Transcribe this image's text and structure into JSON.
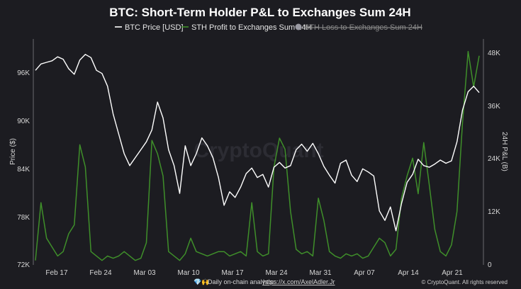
{
  "chart_data": {
    "type": "line",
    "title": "BTC: Short-Term Holder P&L to Exchanges Sum 24H",
    "ylabel_left": "Price ($)",
    "ylabel_right": "24H P&L (B)",
    "ylim_left": [
      72000,
      100000
    ],
    "ylim_right": [
      0,
      50000
    ],
    "yticks_left": [
      "72K",
      "78K",
      "84K",
      "90K",
      "96K"
    ],
    "yticks_right": [
      "0",
      "12K",
      "24K",
      "36K",
      "48K"
    ],
    "xticks": [
      "Feb 17",
      "Feb 24",
      "Mar 03",
      "Mar 10",
      "Mar 17",
      "Mar 24",
      "Mar 31",
      "Apr 07",
      "Apr 14",
      "Apr 21"
    ],
    "series": [
      {
        "name": "BTC Price [USD]",
        "color": "#ffffff",
        "axis": "left",
        "visible": true,
        "values": [
          [
            0,
            96500
          ],
          [
            1,
            97300
          ],
          [
            2,
            97500
          ],
          [
            3,
            97700
          ],
          [
            4,
            98200
          ],
          [
            5,
            97900
          ],
          [
            6,
            96700
          ],
          [
            7,
            96000
          ],
          [
            8,
            97800
          ],
          [
            9,
            98500
          ],
          [
            10,
            98100
          ],
          [
            11,
            96500
          ],
          [
            12,
            96100
          ],
          [
            13,
            94500
          ],
          [
            14,
            91000
          ],
          [
            15,
            88500
          ],
          [
            16,
            86000
          ],
          [
            17,
            84500
          ],
          [
            18,
            85500
          ],
          [
            19,
            86500
          ],
          [
            20,
            87500
          ],
          [
            21,
            89000
          ],
          [
            22,
            92500
          ],
          [
            23,
            90500
          ],
          [
            24,
            86500
          ],
          [
            25,
            84500
          ],
          [
            26,
            81000
          ],
          [
            27,
            87000
          ],
          [
            28,
            84500
          ],
          [
            29,
            86000
          ],
          [
            30,
            88000
          ],
          [
            31,
            87000
          ],
          [
            32,
            85500
          ],
          [
            33,
            83000
          ],
          [
            34,
            79500
          ],
          [
            35,
            81200
          ],
          [
            36,
            80500
          ],
          [
            37,
            81800
          ],
          [
            38,
            83500
          ],
          [
            39,
            84200
          ],
          [
            40,
            83000
          ],
          [
            41,
            83400
          ],
          [
            42,
            81800
          ],
          [
            43,
            84300
          ],
          [
            44,
            84900
          ],
          [
            45,
            84200
          ],
          [
            46,
            84500
          ],
          [
            47,
            86500
          ],
          [
            48,
            87200
          ],
          [
            49,
            86300
          ],
          [
            50,
            87300
          ],
          [
            51,
            86000
          ],
          [
            52,
            84400
          ],
          [
            53,
            83300
          ],
          [
            54,
            82300
          ],
          [
            55,
            84800
          ],
          [
            56,
            85200
          ],
          [
            57,
            83300
          ],
          [
            58,
            82500
          ],
          [
            59,
            84100
          ],
          [
            60,
            83700
          ],
          [
            61,
            83200
          ],
          [
            62,
            78800
          ],
          [
            63,
            77600
          ],
          [
            64,
            79300
          ],
          [
            65,
            76300
          ],
          [
            66,
            79700
          ],
          [
            67,
            82400
          ],
          [
            68,
            83400
          ],
          [
            69,
            85300
          ],
          [
            70,
            84500
          ],
          [
            71,
            84300
          ],
          [
            72,
            84700
          ],
          [
            73,
            85200
          ],
          [
            74,
            84800
          ],
          [
            75,
            85100
          ],
          [
            76,
            87500
          ],
          [
            77,
            91500
          ],
          [
            78,
            93800
          ],
          [
            79,
            94500
          ],
          [
            80,
            93700
          ]
        ]
      },
      {
        "name": "STH Profit to Exchanges Sum 24H",
        "color": "#3f8f2a",
        "axis": "right",
        "visible": true,
        "values": [
          [
            0,
            1000
          ],
          [
            1,
            14000
          ],
          [
            2,
            6000
          ],
          [
            3,
            4000
          ],
          [
            4,
            2000
          ],
          [
            5,
            3000
          ],
          [
            6,
            7000
          ],
          [
            7,
            9000
          ],
          [
            8,
            27000
          ],
          [
            9,
            22000
          ],
          [
            10,
            3000
          ],
          [
            11,
            2000
          ],
          [
            12,
            1000
          ],
          [
            13,
            2000
          ],
          [
            14,
            1500
          ],
          [
            15,
            2000
          ],
          [
            16,
            3000
          ],
          [
            17,
            2000
          ],
          [
            18,
            1000
          ],
          [
            19,
            1500
          ],
          [
            20,
            5000
          ],
          [
            21,
            28000
          ],
          [
            22,
            25000
          ],
          [
            23,
            20000
          ],
          [
            24,
            3000
          ],
          [
            25,
            2000
          ],
          [
            26,
            1000
          ],
          [
            27,
            2500
          ],
          [
            28,
            6000
          ],
          [
            29,
            3000
          ],
          [
            30,
            2500
          ],
          [
            31,
            2000
          ],
          [
            32,
            2500
          ],
          [
            33,
            3000
          ],
          [
            34,
            3000
          ],
          [
            35,
            2000
          ],
          [
            36,
            2500
          ],
          [
            37,
            3000
          ],
          [
            38,
            2000
          ],
          [
            39,
            14000
          ],
          [
            40,
            3000
          ],
          [
            41,
            2000
          ],
          [
            42,
            2500
          ],
          [
            43,
            22000
          ],
          [
            44,
            28500
          ],
          [
            45,
            26000
          ],
          [
            46,
            12000
          ],
          [
            47,
            3500
          ],
          [
            48,
            2500
          ],
          [
            49,
            3000
          ],
          [
            50,
            2000
          ],
          [
            51,
            15000
          ],
          [
            52,
            10000
          ],
          [
            53,
            3000
          ],
          [
            54,
            2000
          ],
          [
            55,
            1500
          ],
          [
            56,
            2500
          ],
          [
            57,
            2000
          ],
          [
            58,
            2500
          ],
          [
            59,
            1500
          ],
          [
            60,
            2000
          ],
          [
            61,
            4000
          ],
          [
            62,
            6000
          ],
          [
            63,
            5000
          ],
          [
            64,
            2000
          ],
          [
            65,
            3500
          ],
          [
            66,
            15000
          ],
          [
            67,
            20000
          ],
          [
            68,
            24000
          ],
          [
            69,
            16000
          ],
          [
            70,
            27500
          ],
          [
            71,
            18000
          ],
          [
            72,
            8000
          ],
          [
            73,
            3000
          ],
          [
            74,
            2000
          ],
          [
            75,
            4500
          ],
          [
            76,
            12000
          ],
          [
            77,
            32000
          ],
          [
            78,
            48000
          ],
          [
            79,
            40000
          ],
          [
            80,
            47000
          ]
        ]
      },
      {
        "name": "STH Loss to Exchanges Sum 24H",
        "color": "#9a9aa3",
        "axis": "right",
        "visible": false,
        "values": []
      }
    ],
    "grid": false,
    "legend_placement": "top-center"
  },
  "watermark": "CryptoQuant",
  "footer": {
    "icons": "💎🙌",
    "text": "Daily on-chain analysis:",
    "link": "https://x.com/AxelAdler.Jr"
  },
  "copyright": "© CryptoQuant. All rights reserved"
}
